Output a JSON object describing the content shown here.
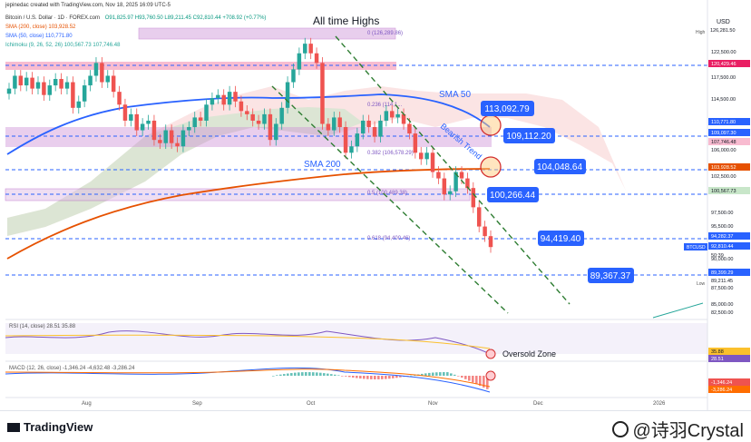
{
  "header": {
    "line1": "jepinedac created with TradingView.com, Nov 18, 2025 16:09 UTC-5",
    "symbol": "Bitcoin / U.S. Dollar · 1D · FOREX.com",
    "ohlc": "O91,825.97 H93,760.50 L89,211.45 C92,810.44 +708.92 (+0.77%)",
    "sma200": "SMA (200, close) 103,928.52",
    "sma50": "SMA (50, close) 110,771.80",
    "ichimoku": "Ichimoku (9, 26, 52, 26) 100,567.73 107,746.48",
    "currency": "USD"
  },
  "colors": {
    "up": "#26a69a",
    "down": "#ef5350",
    "sma50": "#2962ff",
    "sma200": "#e65100",
    "fib_zone": "#9c27b0",
    "callout": "#2962ff",
    "trend": "#2e7d32",
    "rsi": "#7e57c2"
  },
  "annotations": {
    "ath": "All time Highs",
    "sma50_label": "SMA 50",
    "sma200_label": "SMA 200",
    "bearish": "Bearish Trend",
    "oversold": "Oversold Zone",
    "callouts": [
      "113,092.79",
      "109,112.20",
      "104,048.64",
      "100,266.44",
      "94,419.40",
      "89,367.37"
    ],
    "fib": [
      "0 (126,289.86)",
      "0.236 (114,1...",
      "0.382 (106,578.29)",
      "0.5 (100,489.38)",
      "0.618 (94,400.46)"
    ]
  },
  "price_axis": {
    "ticks": [
      "126,281.50",
      "122,500.00",
      "120,429.46",
      "117,500.00",
      "114,500.00",
      "110,771.80",
      "109,097.30",
      "107,746.48",
      "106,000.00",
      "103,928.52",
      "102,500.00",
      "100,567.73",
      "97,500.00",
      "95,500.00",
      "94,282.37",
      "92,810.44",
      "90,000.00",
      "89,399.29",
      "89,211.45",
      "87,500.00",
      "85,000.00",
      "82,500.00"
    ],
    "high_label": "High",
    "low_label": "Low",
    "btc_label": "BTCUSD",
    "countdown": "50:39"
  },
  "time_axis": [
    "Aug",
    "Sep",
    "Oct",
    "Nov",
    "Dec",
    "2026"
  ],
  "rsi": {
    "label": "RSI (14, close) 28.51 35.88",
    "values": [
      "35.88",
      "28.51"
    ]
  },
  "macd": {
    "label": "MACD (12, 26, close) -1,346.24 -4,632.48 -3,286.24",
    "values": [
      "-1,346.24",
      "-3,286.24"
    ]
  },
  "chart_data": {
    "type": "candlestick",
    "title": "Bitcoin / U.S. Dollar · 1D · FOREX.com",
    "x_range": [
      "2025-07-14",
      "2025-11-18"
    ],
    "ylim": [
      82500,
      126500
    ],
    "closes": [
      117500,
      119500,
      118000,
      119200,
      117500,
      118500,
      116500,
      118000,
      119000,
      117500,
      118500,
      114500,
      115500,
      118000,
      119500,
      121500,
      118500,
      119500,
      117000,
      115000,
      112500,
      113500,
      111000,
      112000,
      112500,
      109500,
      109000,
      111000,
      109000,
      108500,
      111000,
      111500,
      113000,
      112500,
      115000,
      116000,
      116500,
      115000,
      117000,
      115500,
      114000,
      113500,
      112500,
      112000,
      113500,
      109500,
      112000,
      114500,
      118500,
      120500,
      123000,
      124500,
      123000,
      121500,
      112000,
      111000,
      113000,
      111500,
      107500,
      108500,
      110500,
      112500,
      111500,
      110000,
      112500,
      114000,
      113000,
      113500,
      112000,
      110500,
      107500,
      106500,
      107500,
      104500,
      103500,
      101000,
      101500,
      104500,
      103500,
      102000,
      99000,
      96000,
      94500,
      92800
    ],
    "indicators": {
      "sma_50_last": 110771.8,
      "sma_200_last": 103928.52,
      "ichimoku_span_a": 100567.73,
      "ichimoku_span_b": 107746.48,
      "ath": 126289.86,
      "fib_levels": [
        {
          "ratio": 0,
          "price": 126289.86
        },
        {
          "ratio": 0.382,
          "price": 106578.29
        },
        {
          "ratio": 0.5,
          "price": 100489.38
        },
        {
          "ratio": 0.618,
          "price": 94400.46
        }
      ]
    },
    "rsi_last": 28.51,
    "macd_last": -1346.24
  }
}
